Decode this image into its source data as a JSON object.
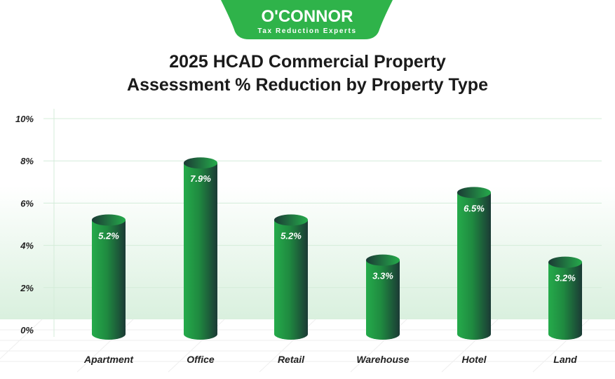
{
  "logo": {
    "name": "O'CONNOR",
    "tagline": "Tax Reduction Experts",
    "color": "#2fb34a"
  },
  "chart_data": {
    "type": "bar",
    "title": [
      "2025 HCAD Commercial Property",
      "Assessment % Reduction by Property Type"
    ],
    "categories": [
      "Apartment",
      "Office",
      "Retail",
      "Warehouse",
      "Hotel",
      "Land"
    ],
    "values": [
      5.2,
      7.9,
      5.2,
      3.3,
      6.5,
      3.2
    ],
    "data_labels": [
      "5.2%",
      "7.9%",
      "5.2%",
      "3.3%",
      "6.5%",
      "3.2%"
    ],
    "ylim": [
      0,
      10
    ],
    "yticks": [
      "0%",
      "2%",
      "4%",
      "6%",
      "8%",
      "10%"
    ],
    "ytick_values": [
      0,
      2,
      4,
      6,
      8,
      10
    ],
    "xlabel": "",
    "ylabel": "",
    "grid": true,
    "bar_style": "3d-cylinder",
    "colors": {
      "bar_light": "#25ab4b",
      "bar_dark": "#1b3a35",
      "grid": "#d4ecd9"
    }
  }
}
